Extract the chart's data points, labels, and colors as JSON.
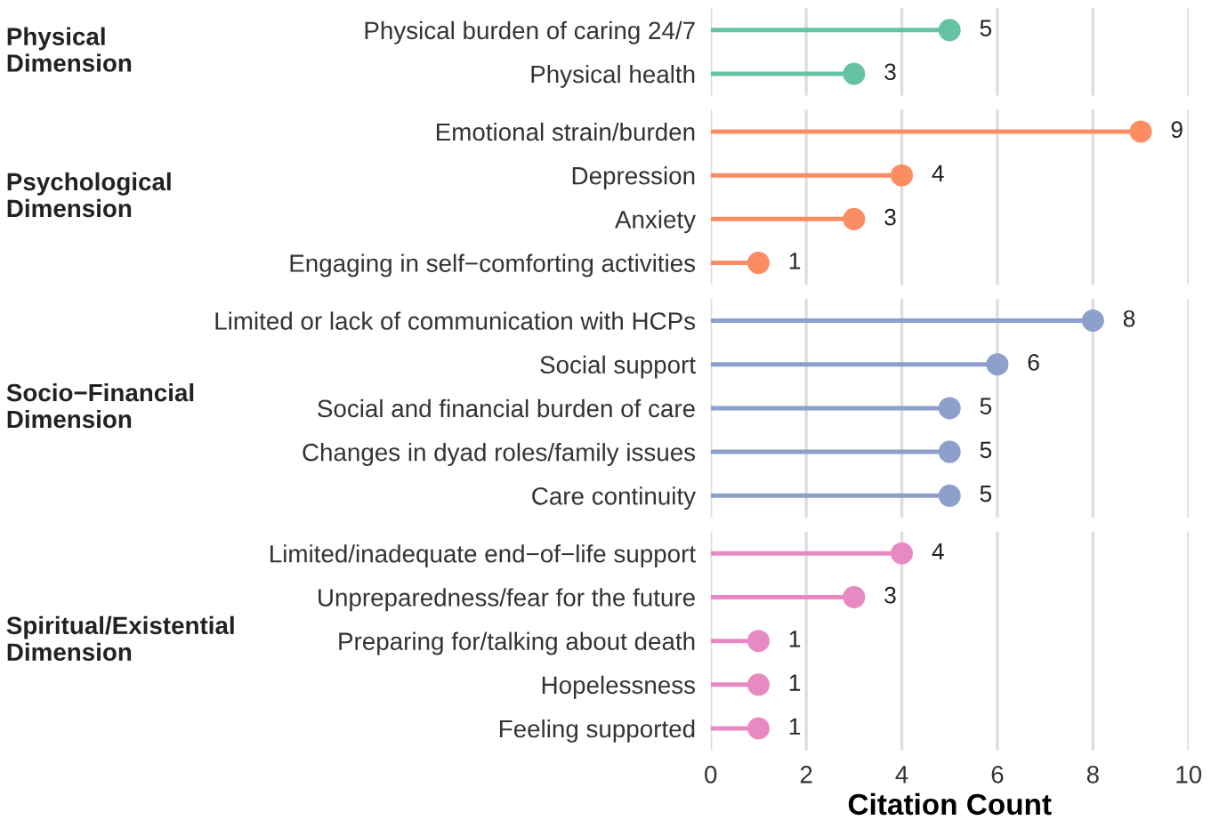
{
  "chart_data": [
    {
      "type": "lollipop",
      "ylabel": "Physical\nDimension",
      "categories": [
        "Physical burden of caring 24/7",
        "Physical health"
      ],
      "values": [
        5,
        3
      ],
      "color": "#66c2a5",
      "xlim": [
        0,
        10
      ],
      "xticks": [
        0,
        2,
        4,
        6,
        8,
        10
      ],
      "grid": "x",
      "data_labels": true,
      "orientation": "horizontal",
      "marker": "circle",
      "tick_labels": "y"
    },
    {
      "type": "lollipop",
      "ylabel": "Psychological\nDimension",
      "categories": [
        "Emotional strain/burden",
        "Depression",
        "Anxiety",
        "Engaging in self−comforting activities"
      ],
      "values": [
        9,
        4,
        3,
        1
      ],
      "color": "#fc8d62",
      "xlim": [
        0,
        10
      ],
      "xticks": [
        0,
        2,
        4,
        6,
        8,
        10
      ],
      "grid": "x",
      "data_labels": true,
      "orientation": "horizontal",
      "marker": "circle",
      "tick_labels": "y"
    },
    {
      "type": "lollipop",
      "ylabel": "Socio−Financial\nDimension",
      "categories": [
        "Limited or lack of communication with HCPs",
        "Social support",
        "Social and financial burden of care",
        "Changes in dyad roles/family issues",
        "Care continuity"
      ],
      "values": [
        8,
        6,
        5,
        5,
        5
      ],
      "color": "#8da0cb",
      "xlim": [
        0,
        10
      ],
      "xticks": [
        0,
        2,
        4,
        6,
        8,
        10
      ],
      "grid": "x",
      "data_labels": true,
      "orientation": "horizontal",
      "marker": "circle",
      "tick_labels": "y"
    },
    {
      "type": "lollipop",
      "ylabel": "Spiritual/Existential\nDimension",
      "categories": [
        "Limited/inadequate end−of−life support",
        "Unpreparedness/fear for the future",
        "Preparing for/talking about death",
        "Hopelessness",
        "Feeling supported"
      ],
      "values": [
        4,
        3,
        1,
        1,
        1
      ],
      "color": "#e78ac3",
      "xlim": [
        0,
        10
      ],
      "xticks": [
        0,
        2,
        4,
        6,
        8,
        10
      ],
      "grid": "x",
      "data_labels": true,
      "orientation": "horizontal",
      "marker": "circle",
      "xlabel": "Citation Count"
    }
  ]
}
